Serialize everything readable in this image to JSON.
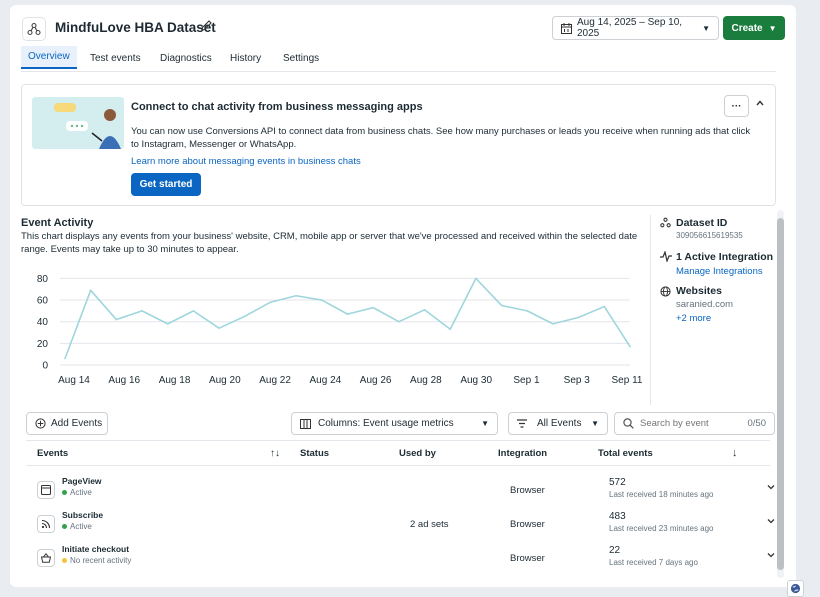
{
  "header": {
    "title": "MindfuLove HBA Dataset",
    "date_range": "Aug 14, 2025 – Sep 10, 2025",
    "create_label": "Create"
  },
  "tabs": [
    {
      "label": "Overview",
      "active": true
    },
    {
      "label": "Test events"
    },
    {
      "label": "Diagnostics"
    },
    {
      "label": "History"
    },
    {
      "label": "Settings"
    }
  ],
  "banner": {
    "heading": "Connect to chat activity from business messaging apps",
    "body": "You can now use Conversions API to connect data from business chats. See how many purchases or leads you receive when running ads that click to Instagram, Messenger or WhatsApp.",
    "link": "Learn more about messaging events in business chats",
    "button": "Get started",
    "more_label": "···"
  },
  "activity": {
    "title": "Event Activity",
    "description": "This chart displays any events from your business' website, CRM, mobile app or server that we've processed and received within the selected date range. Events may take up to 30 minutes to appear."
  },
  "chart_data": {
    "type": "line",
    "x": [
      "Aug 14",
      "Aug 15",
      "Aug 16",
      "Aug 17",
      "Aug 18",
      "Aug 19",
      "Aug 20",
      "Aug 21",
      "Aug 22",
      "Aug 23",
      "Aug 24",
      "Aug 25",
      "Aug 26",
      "Aug 27",
      "Aug 28",
      "Aug 29",
      "Aug 30",
      "Aug 31",
      "Sep 1",
      "Sep 2",
      "Sep 3",
      "Sep 4",
      "Sep 5"
    ],
    "values": [
      6,
      69,
      42,
      50,
      38,
      50,
      34,
      45,
      58,
      64,
      60,
      47,
      53,
      40,
      51,
      33,
      80,
      55,
      50,
      38,
      44,
      54,
      17
    ],
    "tick_labels": [
      "Aug 14",
      "Aug 16",
      "Aug 18",
      "Aug 20",
      "Aug 22",
      "Aug 24",
      "Aug 26",
      "Aug 28",
      "Aug 30",
      "Sep 1",
      "Sep 3",
      "Sep 11"
    ],
    "yticks": [
      0,
      20,
      40,
      60,
      80
    ],
    "ylim": [
      0,
      85
    ],
    "grid": true,
    "color": "#9fd6dc"
  },
  "side": {
    "dataset_label": "Dataset ID",
    "dataset_id": "309056615619535",
    "integration_label": "1 Active Integration",
    "integration_link": "Manage Integrations",
    "websites_label": "Websites",
    "website": "saranied.com",
    "more_link": "+2 more"
  },
  "toolbar": {
    "add_events": "Add Events",
    "columns": "Columns: Event usage metrics",
    "filter": "All Events",
    "search_placeholder": "Search by event",
    "search_count": "0/50"
  },
  "table": {
    "headers": [
      "Events",
      "Status",
      "Used by",
      "Integration",
      "Total events"
    ],
    "rows": [
      {
        "name": "PageView",
        "status": "Active",
        "used_by": "",
        "integration": "Browser",
        "total": "572",
        "last": "Last received 18 minutes ago",
        "dot": "green"
      },
      {
        "name": "Subscribe",
        "status": "Active",
        "used_by": "2 ad sets",
        "integration": "Browser",
        "total": "483",
        "last": "Last received 23 minutes ago",
        "dot": "green"
      },
      {
        "name": "Initiate checkout",
        "status": "No recent activity",
        "used_by": "",
        "integration": "Browser",
        "total": "22",
        "last": "Last received 7 days ago",
        "dot": "yellow"
      }
    ]
  }
}
